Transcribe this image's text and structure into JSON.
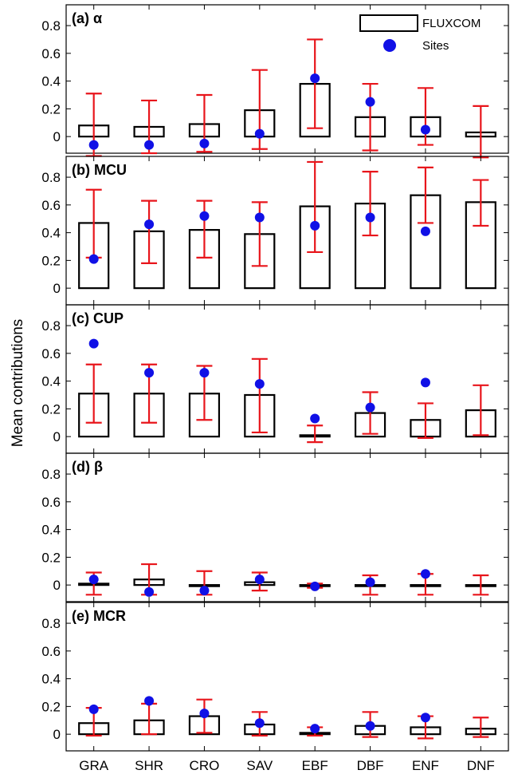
{
  "chart_data": {
    "type": "bar",
    "ylabel": "Mean contributions",
    "categories": [
      "GRA",
      "SHR",
      "CRO",
      "SAV",
      "EBF",
      "DBF",
      "ENF",
      "DNF"
    ],
    "yticks": [
      0,
      0.2,
      0.4,
      0.6,
      0.8
    ],
    "ytick_labels": [
      "0",
      "0.2",
      "0.4",
      "0.6",
      "0.8"
    ],
    "ylim": [
      -0.12,
      0.95
    ],
    "legend": {
      "position": "top-right",
      "bar_label": "FLUXCOM",
      "point_label": "Sites"
    },
    "colors": {
      "bar_edge": "#000000",
      "error_bar": "#e8151b",
      "site_point": "#1010e6"
    },
    "panels": [
      {
        "label_id": "(a)",
        "label_name": "α",
        "bar_values": [
          0.08,
          0.07,
          0.09,
          0.19,
          0.38,
          0.14,
          0.14,
          0.03
        ],
        "error_low": [
          -0.14,
          -0.12,
          -0.11,
          -0.09,
          0.06,
          -0.1,
          -0.06,
          -0.15
        ],
        "error_high": [
          0.31,
          0.26,
          0.3,
          0.48,
          0.7,
          0.38,
          0.35,
          0.22
        ],
        "site_values": [
          -0.06,
          -0.06,
          -0.05,
          0.02,
          0.42,
          0.25,
          0.05,
          null
        ]
      },
      {
        "label_id": "(b)",
        "label_name": "MCU",
        "bar_values": [
          0.47,
          0.41,
          0.42,
          0.39,
          0.59,
          0.61,
          0.67,
          0.62
        ],
        "error_low": [
          0.22,
          0.18,
          0.22,
          0.16,
          0.26,
          0.38,
          0.47,
          0.45
        ],
        "error_high": [
          0.71,
          0.63,
          0.63,
          0.62,
          0.91,
          0.84,
          0.87,
          0.78
        ],
        "site_values": [
          0.21,
          0.46,
          0.52,
          0.51,
          0.45,
          0.51,
          0.41,
          null
        ]
      },
      {
        "label_id": "(c)",
        "label_name": "CUP",
        "bar_values": [
          0.31,
          0.31,
          0.31,
          0.3,
          0.01,
          0.17,
          0.12,
          0.19
        ],
        "error_low": [
          0.1,
          0.1,
          0.12,
          0.03,
          -0.04,
          0.02,
          -0.01,
          0.01
        ],
        "error_high": [
          0.52,
          0.52,
          0.51,
          0.56,
          0.08,
          0.32,
          0.24,
          0.37
        ],
        "site_values": [
          0.67,
          0.46,
          0.46,
          0.38,
          0.13,
          0.21,
          0.39,
          null
        ]
      },
      {
        "label_id": "(d)",
        "label_name": "β",
        "bar_values": [
          0.01,
          0.04,
          0.0,
          0.02,
          0.0,
          0.0,
          0.0,
          0.0
        ],
        "error_low": [
          -0.07,
          -0.07,
          -0.07,
          -0.04,
          -0.02,
          -0.07,
          -0.07,
          -0.07
        ],
        "error_high": [
          0.09,
          0.15,
          0.1,
          0.09,
          0.01,
          0.07,
          0.08,
          0.07
        ],
        "site_values": [
          0.04,
          -0.05,
          -0.04,
          0.04,
          -0.01,
          0.02,
          0.08,
          null
        ]
      },
      {
        "label_id": "(e)",
        "label_name": "MCR",
        "bar_values": [
          0.08,
          0.1,
          0.13,
          0.07,
          0.01,
          0.06,
          0.05,
          0.04
        ],
        "error_low": [
          -0.01,
          0.0,
          0.01,
          -0.01,
          -0.01,
          -0.02,
          -0.03,
          -0.02
        ],
        "error_high": [
          0.19,
          0.22,
          0.25,
          0.16,
          0.05,
          0.16,
          0.13,
          0.12
        ],
        "site_values": [
          0.18,
          0.24,
          0.15,
          0.08,
          0.04,
          0.06,
          0.12,
          null
        ]
      }
    ]
  }
}
